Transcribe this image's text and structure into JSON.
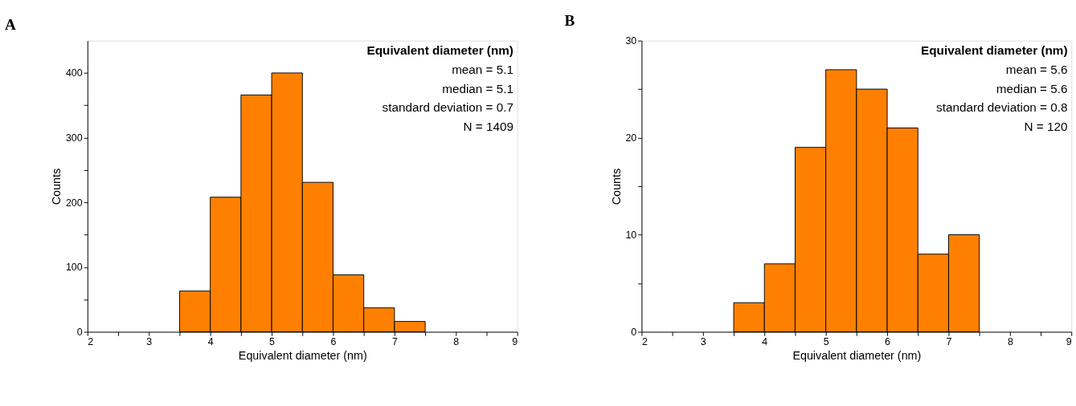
{
  "chart_data": [
    {
      "type": "histogram",
      "title": "A",
      "xlabel": "Equivalent diameter (nm)",
      "ylabel": "Counts",
      "bins": [
        3.5,
        4,
        4.5,
        5,
        5.5,
        6,
        6.5,
        7,
        7.5
      ],
      "values": [
        63,
        208,
        366,
        400,
        231,
        88,
        37,
        16
      ],
      "color": "#ff8000",
      "xlim": [
        2,
        9
      ],
      "xticks": [
        2,
        {
          "value": 2.5,
          "label": null
        },
        3,
        {
          "value": 3.5,
          "label": null
        },
        4,
        {
          "value": 4.5,
          "label": null
        },
        5,
        {
          "value": 5.5,
          "label": null
        },
        6,
        {
          "value": 6.5,
          "label": null
        },
        7,
        {
          "value": 7.5,
          "label": null
        },
        8,
        {
          "value": 8.5,
          "label": null
        },
        9
      ],
      "ylim": [
        0,
        450
      ],
      "yticks": [
        0,
        {
          "value": 50,
          "label": null
        },
        100,
        {
          "value": 150,
          "label": null
        },
        200,
        {
          "value": 250,
          "label": null
        },
        300,
        {
          "value": 350,
          "label": null
        },
        400
      ],
      "grid": false,
      "annotations": [
        "Equivalent diameter (nm)",
        "mean = 5.1",
        "median = 5.1",
        "standard deviation = 0.7",
        "N = 1409"
      ]
    },
    {
      "type": "histogram",
      "title": "B",
      "xlabel": "Equivalent diameter (nm)",
      "ylabel": "Counts",
      "bins": [
        3.5,
        4,
        4.5,
        5,
        5.5,
        6,
        6.5,
        7,
        7.5
      ],
      "values": [
        3,
        7,
        19,
        27,
        25,
        21,
        8,
        10
      ],
      "color": "#ff8000",
      "xlim": [
        2,
        9
      ],
      "xticks": [
        2,
        {
          "value": 2.5,
          "label": null
        },
        3,
        {
          "value": 3.5,
          "label": null
        },
        4,
        {
          "value": 4.5,
          "label": null
        },
        5,
        {
          "value": 5.5,
          "label": null
        },
        6,
        {
          "value": 6.5,
          "label": null
        },
        7,
        {
          "value": 7.5,
          "label": null
        },
        8,
        {
          "value": 8.5,
          "label": null
        },
        9
      ],
      "ylim": [
        0,
        30
      ],
      "yticks": [
        0,
        {
          "value": 5,
          "label": null
        },
        10,
        {
          "value": 15,
          "label": null
        },
        20,
        {
          "value": 25,
          "label": null
        },
        30
      ],
      "grid": false,
      "annotations": [
        "Equivalent diameter (nm)",
        "mean = 5.6",
        "median = 5.6",
        "standard deviation = 0.8",
        "N = 120"
      ]
    }
  ]
}
